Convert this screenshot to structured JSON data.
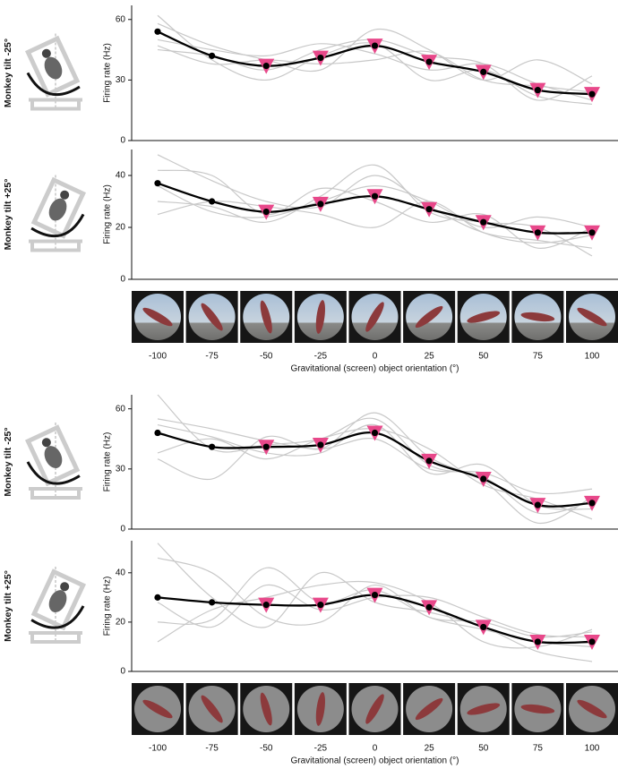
{
  "chart_data": [
    {
      "type": "line",
      "row_label": "Monkey tilt -25°",
      "ylabel": "Firing rate (Hz)",
      "x": [
        -100,
        -75,
        -50,
        -25,
        0,
        25,
        50,
        75,
        100
      ],
      "xlim": [
        -100,
        100
      ],
      "ylim": [
        0,
        67
      ],
      "yticks": [
        0,
        30,
        60
      ],
      "series": [
        {
          "color": "#c8c8c8",
          "values": [
            58,
            47,
            40,
            35,
            55,
            45,
            30,
            40,
            28
          ]
        },
        {
          "color": "#c8c8c8",
          "values": [
            50,
            45,
            42,
            48,
            43,
            35,
            38,
            28,
            20
          ]
        },
        {
          "color": "#c8c8c8",
          "values": [
            45,
            42,
            35,
            45,
            50,
            42,
            38,
            20,
            32
          ]
        },
        {
          "color": "#c8c8c8",
          "values": [
            62,
            40,
            30,
            42,
            48,
            30,
            35,
            22,
            18
          ]
        },
        {
          "color": "#c8c8c8",
          "values": [
            47,
            38,
            40,
            38,
            40,
            44,
            30,
            27,
            24
          ]
        },
        {
          "color": "#000000",
          "values": [
            54,
            42,
            37,
            41,
            47,
            39,
            34,
            25,
            23
          ]
        }
      ],
      "markers": {
        "color": "#e8488a",
        "x": [
          -50,
          -25,
          0,
          25,
          50,
          75,
          100
        ]
      }
    },
    {
      "type": "line",
      "row_label": "Monkey tilt +25°",
      "ylabel": "Firing rate (Hz)",
      "x": [
        -100,
        -75,
        -50,
        -25,
        0,
        25,
        50,
        75,
        100
      ],
      "xlim": [
        -100,
        100
      ],
      "ylim": [
        0,
        50
      ],
      "yticks": [
        0,
        20,
        40
      ],
      "xticks": [
        -100,
        -75,
        -50,
        -25,
        0,
        25,
        50,
        75,
        100
      ],
      "xlabel": "Gravitational (screen) object orientation (°)",
      "series": [
        {
          "color": "#c8c8c8",
          "values": [
            48,
            38,
            30,
            28,
            40,
            28,
            18,
            15,
            12
          ]
        },
        {
          "color": "#c8c8c8",
          "values": [
            42,
            40,
            25,
            35,
            30,
            22,
            25,
            12,
            20
          ]
        },
        {
          "color": "#c8c8c8",
          "values": [
            30,
            28,
            22,
            32,
            44,
            26,
            22,
            20,
            9
          ]
        },
        {
          "color": "#c8c8c8",
          "values": [
            25,
            30,
            28,
            25,
            20,
            30,
            18,
            14,
            17
          ]
        },
        {
          "color": "#c8c8c8",
          "values": [
            36,
            26,
            24,
            30,
            36,
            30,
            20,
            24,
            20
          ]
        },
        {
          "color": "#000000",
          "values": [
            37,
            30,
            26,
            29,
            32,
            27,
            22,
            18,
            18
          ]
        }
      ],
      "markers": {
        "color": "#e8488a",
        "x": [
          -50,
          -25,
          0,
          25,
          50,
          75,
          100
        ]
      }
    },
    {
      "type": "line",
      "row_label": "Monkey tilt -25°",
      "ylabel": "Firing rate (Hz)",
      "x": [
        -100,
        -75,
        -50,
        -25,
        0,
        25,
        50,
        75,
        100
      ],
      "xlim": [
        -100,
        100
      ],
      "ylim": [
        0,
        67
      ],
      "yticks": [
        0,
        30,
        60
      ],
      "series": [
        {
          "color": "#c8c8c8",
          "values": [
            67,
            40,
            42,
            45,
            55,
            32,
            26,
            8,
            14
          ]
        },
        {
          "color": "#c8c8c8",
          "values": [
            55,
            50,
            44,
            40,
            45,
            30,
            28,
            18,
            20
          ]
        },
        {
          "color": "#c8c8c8",
          "values": [
            38,
            45,
            35,
            45,
            50,
            40,
            22,
            15,
            5
          ]
        },
        {
          "color": "#c8c8c8",
          "values": [
            35,
            25,
            46,
            40,
            58,
            36,
            24,
            3,
            16
          ]
        },
        {
          "color": "#c8c8c8",
          "values": [
            52,
            46,
            38,
            38,
            52,
            28,
            32,
            12,
            10
          ]
        },
        {
          "color": "#000000",
          "values": [
            48,
            41,
            41,
            42,
            48,
            34,
            25,
            12,
            13
          ]
        }
      ],
      "markers": {
        "color": "#e8488a",
        "x": [
          -50,
          -25,
          0,
          25,
          50,
          75,
          100
        ]
      }
    },
    {
      "type": "line",
      "row_label": "Monkey tilt +25°",
      "ylabel": "Firing rate (Hz)",
      "x": [
        -100,
        -75,
        -50,
        -25,
        0,
        25,
        50,
        75,
        100
      ],
      "xlim": [
        -100,
        100
      ],
      "ylim": [
        0,
        53
      ],
      "yticks": [
        0,
        20,
        40
      ],
      "xticks": [
        -100,
        -75,
        -50,
        -25,
        0,
        25,
        50,
        75,
        100
      ],
      "xlabel": "Gravitational (screen) object orientation (°)",
      "series": [
        {
          "color": "#c8c8c8",
          "values": [
            52,
            30,
            18,
            40,
            28,
            24,
            18,
            8,
            4
          ]
        },
        {
          "color": "#c8c8c8",
          "values": [
            46,
            40,
            22,
            20,
            35,
            22,
            20,
            14,
            16
          ]
        },
        {
          "color": "#c8c8c8",
          "values": [
            12,
            25,
            30,
            35,
            36,
            28,
            12,
            10,
            17
          ]
        },
        {
          "color": "#c8c8c8",
          "values": [
            20,
            21,
            42,
            28,
            33,
            22,
            17,
            12,
            10
          ]
        },
        {
          "color": "#c8c8c8",
          "values": [
            28,
            18,
            35,
            25,
            30,
            30,
            22,
            15,
            14
          ]
        },
        {
          "color": "#000000",
          "values": [
            30,
            28,
            27,
            27,
            31,
            26,
            18,
            12,
            12
          ]
        }
      ],
      "markers": {
        "color": "#e8488a",
        "x": [
          -50,
          -25,
          0,
          25,
          50,
          75,
          100
        ]
      }
    }
  ]
}
